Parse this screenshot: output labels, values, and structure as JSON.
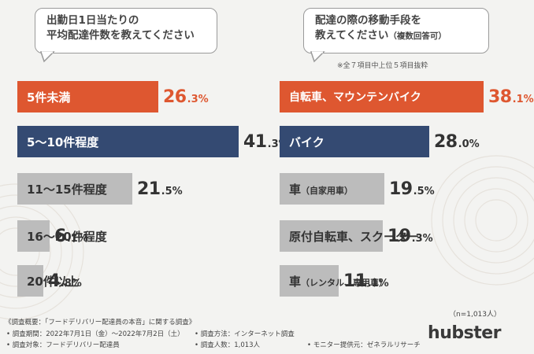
{
  "colors": {
    "top": "#de5730",
    "second": "#344a72",
    "rest": "#bcbcbc",
    "background": "#f3f3f1"
  },
  "chart_data": [
    {
      "type": "bar",
      "orientation": "horizontal",
      "title": "出勤日1日当たりの平均配達件数を教えてください",
      "title_lines": [
        "出勤日1日当たりの",
        "平均配達件数を教えてください"
      ],
      "unit": "%",
      "categories": [
        "5件未満",
        "5〜10件程度",
        "11〜15件程度",
        "16〜20件程度",
        "20件以上"
      ],
      "values": [
        26.3,
        41.3,
        21.5,
        6.1,
        4.8
      ],
      "value_labels": [
        {
          "int": "26",
          "dec": ".3",
          "pct": "%"
        },
        {
          "int": "41",
          "dec": ".3",
          "pct": "%"
        },
        {
          "int": "21",
          "dec": ".5",
          "pct": "%"
        },
        {
          "int": "6",
          "dec": ".1",
          "pct": "%"
        },
        {
          "int": "4",
          "dec": ".8",
          "pct": "%"
        }
      ],
      "xlim": [
        0,
        45
      ]
    },
    {
      "type": "bar",
      "orientation": "horizontal",
      "title": "配達の際の移動手段を教えてください（複数回答可）",
      "title_lines": [
        "配達の際の移動手段を",
        "教えてください"
      ],
      "title_suffix": "（複数回答可）",
      "note": "※全７項目中上位５項目抜粋",
      "unit": "%",
      "categories": [
        "自転車、マウンテンバイク",
        "バイク",
        "車（自家用車）",
        "原付自転車、スクーター",
        "車（レンタル、専用車）"
      ],
      "category_parts": [
        {
          "main": "自転車、マウンテンバイク",
          "sub": ""
        },
        {
          "main": "バイク",
          "sub": ""
        },
        {
          "main": "車",
          "sub": "（自家用車）"
        },
        {
          "main": "原付自転車、スクーター",
          "sub": ""
        },
        {
          "main": "車",
          "sub": "（レンタル、専用車）"
        }
      ],
      "values": [
        38.1,
        28.0,
        19.5,
        19.3,
        11.1
      ],
      "value_labels": [
        {
          "int": "38",
          "dec": ".1",
          "pct": "%"
        },
        {
          "int": "28",
          "dec": ".0",
          "pct": "%"
        },
        {
          "int": "19",
          "dec": ".5",
          "pct": "%"
        },
        {
          "int": "19",
          "dec": ".3",
          "pct": "%"
        },
        {
          "int": "11",
          "dec": ".1",
          "pct": "%"
        }
      ],
      "xlim": [
        0,
        45
      ]
    }
  ],
  "sample_size": "（n=1,013人）",
  "footer": {
    "survey_title": "《調査概要：「フードデリバリー配達員の本音」に関する調査》",
    "period": "• 調査期間：2022年7月1日（金）〜2022年7月2日（土）",
    "target": "• 調査対象：フードデリバリー配達員",
    "method": "• 調査方法：インターネット調査",
    "count": "• 調査人数：1,013人",
    "provider": "• モニター提供元：ゼネラルリサーチ"
  },
  "logo": "hubster"
}
